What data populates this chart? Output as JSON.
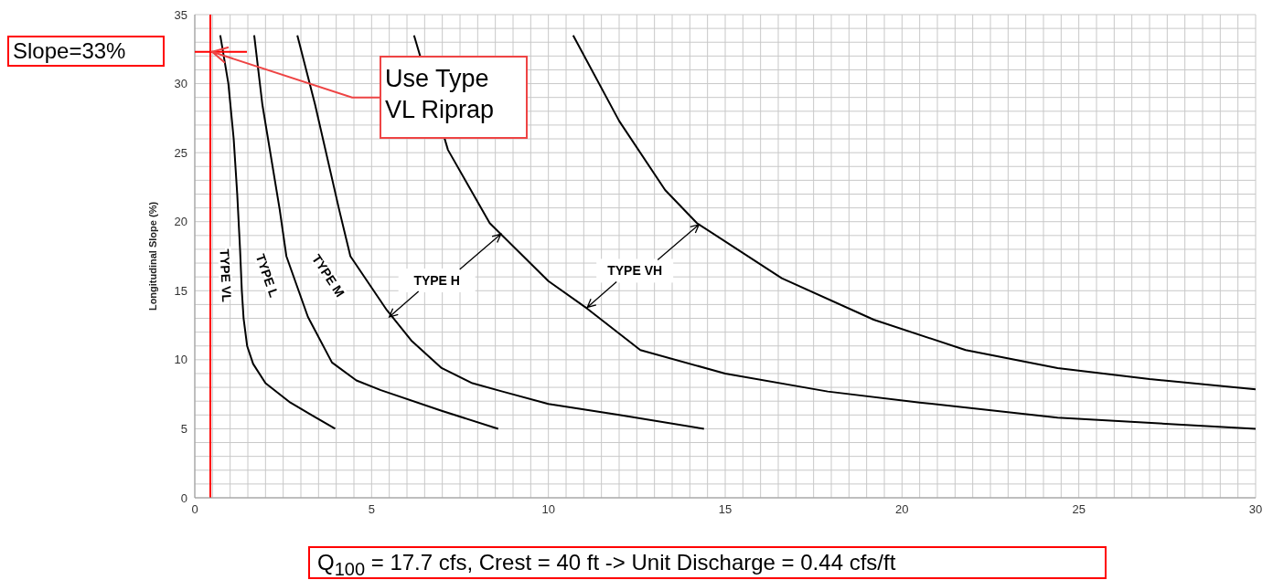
{
  "chart_data": {
    "type": "line",
    "ylabel": "Longitudinal Slope (%)",
    "xlim": [
      0,
      30
    ],
    "ylim": [
      0,
      35
    ],
    "xticks": [
      0,
      {
        "value": 0.5,
        "label": null
      },
      {
        "value": 1,
        "label": null
      },
      {
        "value": 1.5,
        "label": null
      },
      {
        "value": 2,
        "label": null
      },
      {
        "value": 2.5,
        "label": null
      },
      {
        "value": 3,
        "label": null
      },
      {
        "value": 3.5,
        "label": null
      },
      {
        "value": 4,
        "label": null
      },
      {
        "value": 4.5,
        "label": null
      },
      5,
      {
        "value": 5.5,
        "label": null
      },
      {
        "value": 6,
        "label": null
      },
      {
        "value": 6.5,
        "label": null
      },
      {
        "value": 7,
        "label": null
      },
      {
        "value": 7.5,
        "label": null
      },
      {
        "value": 8,
        "label": null
      },
      {
        "value": 8.5,
        "label": null
      },
      {
        "value": 9,
        "label": null
      },
      {
        "value": 9.5,
        "label": null
      },
      10,
      {
        "value": 10.5,
        "label": null
      },
      {
        "value": 11,
        "label": null
      },
      {
        "value": 11.5,
        "label": null
      },
      {
        "value": 12,
        "label": null
      },
      {
        "value": 12.5,
        "label": null
      },
      {
        "value": 13,
        "label": null
      },
      {
        "value": 13.5,
        "label": null
      },
      {
        "value": 14,
        "label": null
      },
      {
        "value": 14.5,
        "label": null
      },
      15,
      {
        "value": 15.5,
        "label": null
      },
      {
        "value": 16,
        "label": null
      },
      {
        "value": 16.5,
        "label": null
      },
      {
        "value": 17,
        "label": null
      },
      {
        "value": 17.5,
        "label": null
      },
      {
        "value": 18,
        "label": null
      },
      {
        "value": 18.5,
        "label": null
      },
      {
        "value": 19,
        "label": null
      },
      {
        "value": 19.5,
        "label": null
      },
      20,
      {
        "value": 20.5,
        "label": null
      },
      {
        "value": 21,
        "label": null
      },
      {
        "value": 21.5,
        "label": null
      },
      {
        "value": 22,
        "label": null
      },
      {
        "value": 22.5,
        "label": null
      },
      {
        "value": 23,
        "label": null
      },
      {
        "value": 23.5,
        "label": null
      },
      {
        "value": 24,
        "label": null
      },
      {
        "value": 24.5,
        "label": null
      },
      25,
      {
        "value": 25.5,
        "label": null
      },
      {
        "value": 26,
        "label": null
      },
      {
        "value": 26.5,
        "label": null
      },
      {
        "value": 27,
        "label": null
      },
      {
        "value": 27.5,
        "label": null
      },
      {
        "value": 28,
        "label": null
      },
      {
        "value": 28.5,
        "label": null
      },
      {
        "value": 29,
        "label": null
      },
      {
        "value": 29.5,
        "label": null
      },
      30
    ],
    "yticks": [
      0,
      {
        "value": 1,
        "label": null
      },
      {
        "value": 2,
        "label": null
      },
      {
        "value": 3,
        "label": null
      },
      {
        "value": 4,
        "label": null
      },
      5,
      {
        "value": 6,
        "label": null
      },
      {
        "value": 7,
        "label": null
      },
      {
        "value": 8,
        "label": null
      },
      {
        "value": 9,
        "label": null
      },
      10,
      {
        "value": 11,
        "label": null
      },
      {
        "value": 12,
        "label": null
      },
      {
        "value": 13,
        "label": null
      },
      {
        "value": 14,
        "label": null
      },
      15,
      {
        "value": 16,
        "label": null
      },
      {
        "value": 17,
        "label": null
      },
      {
        "value": 18,
        "label": null
      },
      {
        "value": 19,
        "label": null
      },
      20,
      {
        "value": 21,
        "label": null
      },
      {
        "value": 22,
        "label": null
      },
      {
        "value": 23,
        "label": null
      },
      {
        "value": 24,
        "label": null
      },
      25,
      {
        "value": 26,
        "label": null
      },
      {
        "value": 27,
        "label": null
      },
      {
        "value": 28,
        "label": null
      },
      {
        "value": 29,
        "label": null
      },
      30,
      {
        "value": 31,
        "label": null
      },
      {
        "value": 32,
        "label": null
      },
      {
        "value": 33,
        "label": null
      },
      {
        "value": 34,
        "label": null
      },
      35
    ],
    "grid": true,
    "marker": "none",
    "line_style": "solid",
    "series": [
      {
        "color": "#000000",
        "x": [
          0.72,
          0.95,
          1.1,
          1.2,
          1.28,
          1.33,
          1.38,
          1.48,
          1.65,
          2.0,
          2.7,
          3.3,
          3.97
        ],
        "values": [
          33.5,
          30,
          26,
          22,
          18,
          15,
          13,
          11,
          9.7,
          8.3,
          6.9,
          6,
          5
        ]
      },
      {
        "color": "#000000",
        "x": [
          1.68,
          1.91,
          2.4,
          2.59,
          3.2,
          3.88,
          4.57,
          5.26,
          6.98,
          8.58
        ],
        "values": [
          33.5,
          28.5,
          20.9,
          17.5,
          13.1,
          9.8,
          8.5,
          7.8,
          6.3,
          5
        ]
      },
      {
        "color": "#000000",
        "x": [
          2.9,
          3.4,
          4.08,
          4.4,
          5.43,
          6.12,
          6.98,
          7.85,
          8.7,
          10,
          12,
          14.4
        ],
        "values": [
          33.5,
          28.5,
          20.9,
          17.5,
          13.6,
          11.4,
          9.4,
          8.3,
          7.7,
          6.8,
          6,
          5
        ]
      },
      {
        "color": "#000000",
        "x": [
          6.2,
          7.16,
          8.34,
          10,
          11.1,
          12.6,
          15,
          17.9,
          20.5,
          24.4,
          30
        ],
        "values": [
          33.5,
          25.2,
          19.9,
          15.7,
          13.7,
          10.7,
          9,
          7.7,
          6.9,
          5.8,
          5
        ]
      },
      {
        "color": "#000000",
        "x": [
          10.7,
          12,
          13.3,
          14.2,
          16.6,
          19.2,
          21.8,
          24.4,
          27,
          30
        ],
        "values": [
          33.5,
          27.3,
          22.3,
          19.9,
          15.9,
          12.9,
          10.7,
          9.4,
          8.6,
          7.85
        ]
      }
    ],
    "ref_lines": [
      {
        "axis": "x",
        "value": 0.44,
        "color": "#ff0000"
      }
    ],
    "annotations": [
      "TYPE VL",
      "TYPE L",
      "TYPE M",
      {
        "text": "TYPE H",
        "x": 5.5,
        "y": 13.1
      },
      {
        "text": "TYPE VH",
        "x": 11.1,
        "y": 13.8
      },
      "Slope=33%",
      {
        "text": "Use Type VL Riprap",
        "x": 0.44,
        "y": 32.3
      },
      "Q$_{100}$ = 17.7 cfs, Crest = 40 ft -> Unit Discharge = 0.44 cfs/ft"
    ]
  }
}
